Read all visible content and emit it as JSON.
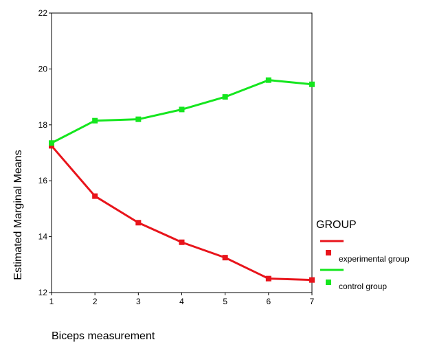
{
  "chart_data": {
    "type": "line",
    "title": "",
    "xlabel": "Biceps measurement",
    "ylabel": "Estimated Marginal Means",
    "x": [
      1,
      2,
      3,
      4,
      5,
      6,
      7
    ],
    "xlim": [
      1,
      7
    ],
    "ylim": [
      12,
      22
    ],
    "yticks": [
      12,
      14,
      16,
      18,
      20,
      22
    ],
    "grid": false,
    "legend": {
      "title": "GROUP",
      "position": "right"
    },
    "series": [
      {
        "name": "experimental group",
        "color": "#e8141b",
        "marker": "square",
        "values": [
          17.25,
          15.45,
          14.5,
          13.8,
          13.25,
          12.5,
          12.45
        ]
      },
      {
        "name": "control group",
        "color": "#14e61e",
        "marker": "square",
        "values": [
          17.35,
          18.15,
          18.2,
          18.55,
          19.0,
          19.6,
          19.45
        ]
      }
    ]
  }
}
